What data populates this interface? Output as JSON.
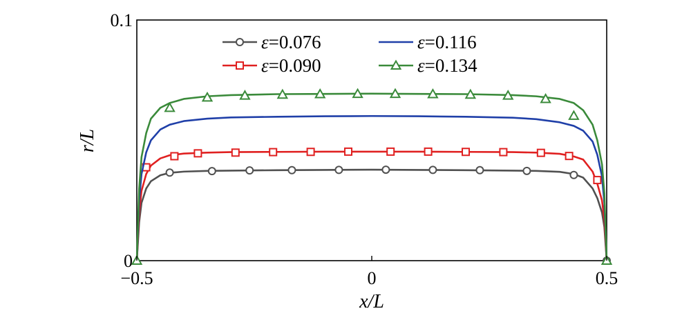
{
  "chart_data": {
    "type": "line",
    "title": "",
    "xlabel": "x/L",
    "ylabel": "r/L",
    "xlim": [
      -0.5,
      0.5
    ],
    "ylim": [
      0,
      0.1
    ],
    "xticks": [
      {
        "value": -0.5,
        "label": "−0.5"
      },
      {
        "value": 0,
        "label": "0"
      },
      {
        "value": 0.5,
        "label": "0.5"
      }
    ],
    "yticks": [
      {
        "value": 0,
        "label": "0"
      },
      {
        "value": 0.1,
        "label": "0.1"
      }
    ],
    "grid": false,
    "legend_position": "top",
    "legend_columns": 2,
    "series": [
      {
        "name": "ε=0.076",
        "eps_symbol": "ε",
        "eps_value": "=0.076",
        "color": "#505050",
        "marker": "circle",
        "x": [
          -0.5,
          -0.495,
          -0.49,
          -0.48,
          -0.47,
          -0.45,
          -0.43,
          -0.4,
          -0.35,
          -0.3,
          -0.2,
          -0.1,
          0,
          0.1,
          0.2,
          0.3,
          0.35,
          0.4,
          0.43,
          0.45,
          0.47,
          0.48,
          0.49,
          0.495,
          0.5
        ],
        "y": [
          0,
          0.016,
          0.024,
          0.03,
          0.033,
          0.0355,
          0.0365,
          0.037,
          0.0373,
          0.0374,
          0.0376,
          0.0377,
          0.0378,
          0.0377,
          0.0376,
          0.0374,
          0.0373,
          0.0369,
          0.036,
          0.0345,
          0.03,
          0.026,
          0.02,
          0.014,
          0
        ],
        "markers_x": [
          -0.43,
          -0.34,
          -0.26,
          -0.17,
          -0.07,
          0.03,
          0.13,
          0.23,
          0.33,
          0.43,
          0.5
        ],
        "markers_y": [
          0.0366,
          0.0372,
          0.0375,
          0.0376,
          0.0377,
          0.0378,
          0.0377,
          0.0376,
          0.0373,
          0.0356,
          0
        ]
      },
      {
        "name": "ε=0.090",
        "eps_symbol": "ε",
        "eps_value": "=0.090",
        "color": "#e02020",
        "marker": "square",
        "x": [
          -0.5,
          -0.495,
          -0.49,
          -0.48,
          -0.47,
          -0.45,
          -0.43,
          -0.4,
          -0.35,
          -0.3,
          -0.2,
          -0.1,
          0,
          0.1,
          0.2,
          0.3,
          0.35,
          0.4,
          0.43,
          0.45,
          0.47,
          0.48,
          0.49,
          0.495,
          0.5
        ],
        "y": [
          0,
          0.02,
          0.029,
          0.036,
          0.0395,
          0.0425,
          0.0438,
          0.0445,
          0.0449,
          0.0451,
          0.0452,
          0.0453,
          0.0453,
          0.0453,
          0.0452,
          0.0451,
          0.0449,
          0.0444,
          0.0433,
          0.042,
          0.037,
          0.032,
          0.025,
          0.017,
          0
        ],
        "markers_x": [
          -0.48,
          -0.42,
          -0.37,
          -0.29,
          -0.21,
          -0.13,
          -0.05,
          0.04,
          0.12,
          0.2,
          0.28,
          0.36,
          0.42,
          0.48
        ],
        "markers_y": [
          0.0388,
          0.0434,
          0.0446,
          0.0449,
          0.0451,
          0.0452,
          0.0453,
          0.0453,
          0.0453,
          0.0452,
          0.0451,
          0.0448,
          0.0435,
          0.0335
        ]
      },
      {
        "name": "ε=0.116",
        "eps_symbol": "ε",
        "eps_value": "=0.116",
        "color": "#1f3fa8",
        "marker": "none",
        "x": [
          -0.5,
          -0.495,
          -0.49,
          -0.48,
          -0.47,
          -0.45,
          -0.43,
          -0.4,
          -0.35,
          -0.3,
          -0.2,
          -0.1,
          0,
          0.1,
          0.2,
          0.3,
          0.35,
          0.4,
          0.43,
          0.45,
          0.47,
          0.48,
          0.49,
          0.495,
          0.5
        ],
        "y": [
          0,
          0.025,
          0.036,
          0.045,
          0.05,
          0.0545,
          0.0565,
          0.058,
          0.059,
          0.0595,
          0.0598,
          0.06,
          0.0601,
          0.06,
          0.0598,
          0.0594,
          0.0588,
          0.0575,
          0.056,
          0.054,
          0.0495,
          0.044,
          0.035,
          0.024,
          0
        ],
        "markers_x": [],
        "markers_y": []
      },
      {
        "name": "ε=0.134",
        "eps_symbol": "ε",
        "eps_value": "=0.134",
        "color": "#3a8a3a",
        "marker": "triangle",
        "x": [
          -0.5,
          -0.495,
          -0.49,
          -0.48,
          -0.47,
          -0.45,
          -0.43,
          -0.4,
          -0.35,
          -0.3,
          -0.2,
          -0.1,
          0,
          0.1,
          0.2,
          0.3,
          0.35,
          0.4,
          0.43,
          0.45,
          0.47,
          0.48,
          0.49,
          0.495,
          0.5
        ],
        "y": [
          0,
          0.03,
          0.043,
          0.053,
          0.059,
          0.0635,
          0.0655,
          0.0672,
          0.0683,
          0.0688,
          0.0692,
          0.0693,
          0.0694,
          0.0693,
          0.0692,
          0.0688,
          0.0683,
          0.0672,
          0.0655,
          0.0625,
          0.0565,
          0.05,
          0.04,
          0.028,
          0
        ],
        "markers_x": [
          -0.5,
          -0.43,
          -0.35,
          -0.27,
          -0.19,
          -0.11,
          -0.03,
          0.05,
          0.13,
          0.21,
          0.29,
          0.37,
          0.43,
          0.5
        ],
        "markers_y": [
          0,
          0.0635,
          0.0678,
          0.0686,
          0.069,
          0.0692,
          0.0693,
          0.0693,
          0.0692,
          0.069,
          0.0686,
          0.0672,
          0.0602,
          0
        ]
      }
    ]
  }
}
